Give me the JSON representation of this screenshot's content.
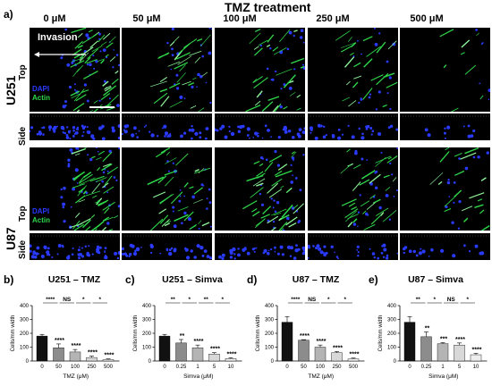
{
  "figure": {
    "panel_a": "a)",
    "heading": "TMZ treatment",
    "concentrations": [
      "0 μM",
      "50 μM",
      "100 μM",
      "250 μM",
      "500 μM"
    ],
    "cell_lines": [
      "U251",
      "U87"
    ],
    "view_top": "Top",
    "view_side": "Side",
    "invasion_label": "Invasion",
    "stain_dapi": "DAPI",
    "stain_actin": "Actin",
    "colors": {
      "dapi": "#2a3bff",
      "actin": "#2fd84a"
    }
  },
  "chart_data": [
    {
      "type": "bar",
      "panel": "b)",
      "title": "U251 – TMZ",
      "xlabel": "TMZ (μM)",
      "ylabel": "Cells/mm width",
      "categories": [
        "0",
        "50",
        "100",
        "250",
        "500"
      ],
      "values": [
        180,
        95,
        65,
        25,
        10
      ],
      "errors": [
        12,
        28,
        18,
        10,
        5
      ],
      "colors": [
        "#111111",
        "#8c8c8c",
        "#b4b4b4",
        "#d8d8d8",
        "#eeeeee"
      ],
      "ylim": [
        0,
        400
      ],
      "yticks": [
        0,
        100,
        200,
        300,
        400
      ],
      "sig_labels": [
        "****",
        "****",
        "****",
        "****"
      ],
      "pair_labels": [
        "****",
        "NS",
        "*",
        "*"
      ]
    },
    {
      "type": "bar",
      "panel": "c)",
      "title": "U251 –  Simva",
      "xlabel": "Simva (μM)",
      "ylabel": "Cells/mm width",
      "categories": [
        "0",
        "0.25",
        "1",
        "5",
        "10"
      ],
      "values": [
        180,
        130,
        95,
        50,
        18
      ],
      "errors": [
        12,
        25,
        20,
        10,
        6
      ],
      "colors": [
        "#111111",
        "#8c8c8c",
        "#b4b4b4",
        "#d8d8d8",
        "#eeeeee"
      ],
      "ylim": [
        0,
        400
      ],
      "yticks": [
        0,
        100,
        200,
        300,
        400
      ],
      "sig_labels": [
        "**",
        "****",
        "****",
        "****"
      ],
      "pair_labels": [
        "**",
        "*",
        "**",
        "*"
      ]
    },
    {
      "type": "bar",
      "panel": "d)",
      "title": "U87 – TMZ",
      "xlabel": "TMZ (μM)",
      "ylabel": "Cells/mm width",
      "categories": [
        "0",
        "50",
        "100",
        "250",
        "500"
      ],
      "values": [
        280,
        150,
        100,
        60,
        15
      ],
      "errors": [
        40,
        4,
        15,
        8,
        6
      ],
      "colors": [
        "#111111",
        "#8c8c8c",
        "#b4b4b4",
        "#d8d8d8",
        "#eeeeee"
      ],
      "ylim": [
        0,
        400
      ],
      "yticks": [
        0,
        100,
        200,
        300,
        400
      ],
      "sig_labels": [
        "****",
        "****",
        "****",
        "****"
      ],
      "pair_labels": [
        "****",
        "NS",
        "*",
        "*"
      ]
    },
    {
      "type": "bar",
      "panel": "e)",
      "title": "U87 –  Simva",
      "xlabel": "Simva (μM)",
      "ylabel": "Cells/mm width",
      "categories": [
        "0",
        "0.25",
        "1",
        "5",
        "10"
      ],
      "values": [
        280,
        175,
        125,
        115,
        45
      ],
      "errors": [
        40,
        35,
        8,
        15,
        10
      ],
      "colors": [
        "#111111",
        "#8c8c8c",
        "#b4b4b4",
        "#d8d8d8",
        "#eeeeee"
      ],
      "ylim": [
        0,
        400
      ],
      "yticks": [
        0,
        100,
        200,
        300,
        400
      ],
      "sig_labels": [
        "**",
        "***",
        "****",
        "****"
      ],
      "pair_labels": [
        "**",
        "*",
        "NS",
        "*"
      ]
    }
  ]
}
